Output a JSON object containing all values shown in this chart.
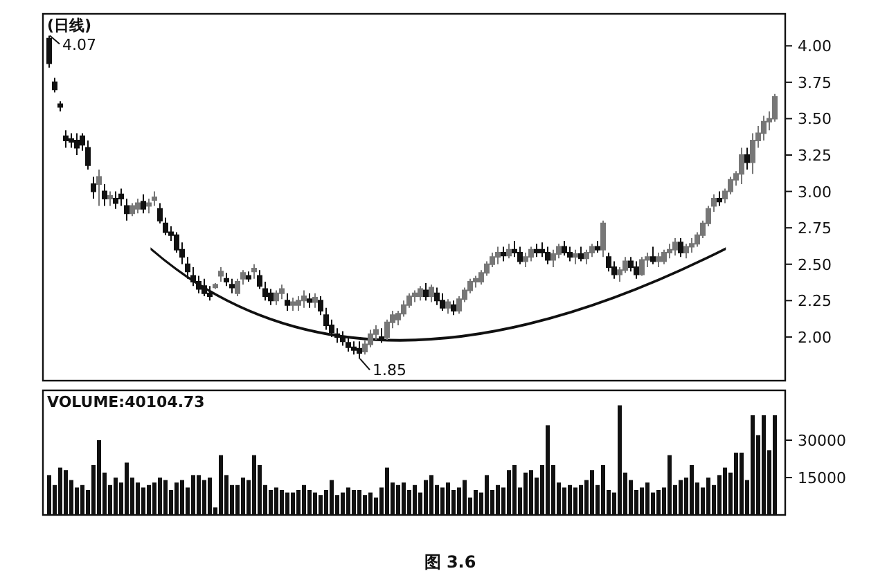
{
  "chart_data": [
    {
      "type": "candlestick",
      "title": "(日线)",
      "categories": [
        null,
        null,
        null,
        null,
        null,
        null,
        null,
        null,
        null,
        null,
        null,
        null,
        null,
        null,
        null,
        null,
        null,
        null,
        null,
        null,
        null,
        null,
        null,
        null,
        null,
        null,
        null,
        null,
        null,
        null,
        null,
        null,
        null,
        null,
        null,
        null,
        null,
        null,
        null,
        null,
        null,
        null,
        null,
        null,
        null,
        null,
        null,
        null,
        null,
        null,
        null,
        null,
        null,
        null,
        null,
        null,
        null,
        null,
        null,
        null,
        null,
        null,
        null,
        null,
        null,
        null,
        null,
        null,
        null,
        null,
        null,
        null,
        null,
        null,
        null,
        null,
        null,
        null,
        null,
        null,
        null,
        null,
        null,
        null,
        null,
        null,
        null,
        null,
        null,
        null,
        null,
        null,
        null,
        null,
        null,
        null,
        null,
        null,
        null,
        null,
        null,
        null,
        null,
        null,
        null,
        null,
        null,
        null,
        null,
        null,
        null,
        null,
        null,
        null,
        null,
        null,
        null,
        null,
        null,
        null,
        null,
        null,
        null,
        null,
        null,
        null,
        null,
        null,
        null,
        null,
        null,
        null
      ],
      "ohlc": [
        [
          4.05,
          4.07,
          3.85,
          3.88
        ],
        [
          3.75,
          3.78,
          3.68,
          3.7
        ],
        [
          3.6,
          3.62,
          3.55,
          3.58
        ],
        [
          3.38,
          3.42,
          3.3,
          3.35
        ],
        [
          3.36,
          3.4,
          3.3,
          3.34
        ],
        [
          3.35,
          3.4,
          3.25,
          3.3
        ],
        [
          3.38,
          3.4,
          3.28,
          3.32
        ],
        [
          3.3,
          3.35,
          3.15,
          3.18
        ],
        [
          3.05,
          3.1,
          2.95,
          3.0
        ],
        [
          3.05,
          3.15,
          2.9,
          3.1
        ],
        [
          3.0,
          3.05,
          2.9,
          2.95
        ],
        [
          2.95,
          3.0,
          2.9,
          2.97
        ],
        [
          2.95,
          3.0,
          2.88,
          2.92
        ],
        [
          2.98,
          3.02,
          2.9,
          2.95
        ],
        [
          2.9,
          2.95,
          2.8,
          2.85
        ],
        [
          2.85,
          2.92,
          2.83,
          2.9
        ],
        [
          2.88,
          2.95,
          2.85,
          2.92
        ],
        [
          2.93,
          2.98,
          2.85,
          2.88
        ],
        [
          2.9,
          2.95,
          2.85,
          2.92
        ],
        [
          2.95,
          3.0,
          2.9,
          2.96
        ],
        [
          2.88,
          2.92,
          2.78,
          2.8
        ],
        [
          2.78,
          2.82,
          2.7,
          2.72
        ],
        [
          2.72,
          2.76,
          2.66,
          2.7
        ],
        [
          2.7,
          2.72,
          2.58,
          2.6
        ],
        [
          2.6,
          2.65,
          2.5,
          2.55
        ],
        [
          2.5,
          2.55,
          2.4,
          2.45
        ],
        [
          2.42,
          2.48,
          2.35,
          2.38
        ],
        [
          2.38,
          2.42,
          2.3,
          2.33
        ],
        [
          2.35,
          2.4,
          2.28,
          2.3
        ],
        [
          2.3,
          2.35,
          2.25,
          2.28
        ],
        [
          2.35,
          2.37,
          2.33,
          2.36
        ],
        [
          2.42,
          2.48,
          2.38,
          2.45
        ],
        [
          2.4,
          2.44,
          2.35,
          2.38
        ],
        [
          2.36,
          2.4,
          2.3,
          2.34
        ],
        [
          2.3,
          2.4,
          2.28,
          2.38
        ],
        [
          2.4,
          2.46,
          2.36,
          2.44
        ],
        [
          2.42,
          2.45,
          2.38,
          2.4
        ],
        [
          2.45,
          2.5,
          2.4,
          2.47
        ],
        [
          2.42,
          2.46,
          2.33,
          2.35
        ],
        [
          2.33,
          2.38,
          2.25,
          2.28
        ],
        [
          2.3,
          2.33,
          2.22,
          2.25
        ],
        [
          2.25,
          2.32,
          2.22,
          2.3
        ],
        [
          2.3,
          2.36,
          2.26,
          2.33
        ],
        [
          2.25,
          2.3,
          2.18,
          2.22
        ],
        [
          2.22,
          2.27,
          2.18,
          2.24
        ],
        [
          2.22,
          2.28,
          2.18,
          2.25
        ],
        [
          2.25,
          2.32,
          2.2,
          2.28
        ],
        [
          2.26,
          2.3,
          2.2,
          2.24
        ],
        [
          2.24,
          2.3,
          2.2,
          2.27
        ],
        [
          2.25,
          2.28,
          2.15,
          2.18
        ],
        [
          2.15,
          2.2,
          2.05,
          2.08
        ],
        [
          2.08,
          2.12,
          2.0,
          2.03
        ],
        [
          2.02,
          2.06,
          1.96,
          2.0
        ],
        [
          2.0,
          2.04,
          1.94,
          1.97
        ],
        [
          1.96,
          2.0,
          1.9,
          1.93
        ],
        [
          1.93,
          1.97,
          1.88,
          1.92
        ],
        [
          1.92,
          1.97,
          1.85,
          1.89
        ],
        [
          1.9,
          1.98,
          1.88,
          1.95
        ],
        [
          1.95,
          2.05,
          1.93,
          2.02
        ],
        [
          2.02,
          2.08,
          1.98,
          2.05
        ],
        [
          2.0,
          2.06,
          1.96,
          1.99
        ],
        [
          2.0,
          2.12,
          1.98,
          2.1
        ],
        [
          2.1,
          2.18,
          2.06,
          2.15
        ],
        [
          2.12,
          2.18,
          2.08,
          2.16
        ],
        [
          2.16,
          2.25,
          2.14,
          2.22
        ],
        [
          2.22,
          2.3,
          2.2,
          2.28
        ],
        [
          2.28,
          2.32,
          2.24,
          2.3
        ],
        [
          2.28,
          2.35,
          2.25,
          2.33
        ],
        [
          2.32,
          2.37,
          2.25,
          2.28
        ],
        [
          2.28,
          2.36,
          2.24,
          2.34
        ],
        [
          2.3,
          2.34,
          2.22,
          2.25
        ],
        [
          2.25,
          2.3,
          2.18,
          2.2
        ],
        [
          2.2,
          2.26,
          2.16,
          2.24
        ],
        [
          2.22,
          2.25,
          2.15,
          2.18
        ],
        [
          2.18,
          2.28,
          2.16,
          2.26
        ],
        [
          2.26,
          2.34,
          2.24,
          2.32
        ],
        [
          2.32,
          2.4,
          2.3,
          2.38
        ],
        [
          2.38,
          2.42,
          2.34,
          2.4
        ],
        [
          2.38,
          2.46,
          2.36,
          2.44
        ],
        [
          2.44,
          2.52,
          2.42,
          2.5
        ],
        [
          2.5,
          2.58,
          2.48,
          2.55
        ],
        [
          2.55,
          2.62,
          2.5,
          2.58
        ],
        [
          2.58,
          2.62,
          2.52,
          2.56
        ],
        [
          2.56,
          2.64,
          2.54,
          2.6
        ],
        [
          2.6,
          2.66,
          2.55,
          2.58
        ],
        [
          2.58,
          2.62,
          2.5,
          2.52
        ],
        [
          2.52,
          2.58,
          2.48,
          2.55
        ],
        [
          2.55,
          2.62,
          2.52,
          2.6
        ],
        [
          2.6,
          2.64,
          2.55,
          2.58
        ],
        [
          2.6,
          2.65,
          2.55,
          2.58
        ],
        [
          2.58,
          2.62,
          2.5,
          2.53
        ],
        [
          2.53,
          2.6,
          2.48,
          2.57
        ],
        [
          2.57,
          2.64,
          2.54,
          2.62
        ],
        [
          2.62,
          2.66,
          2.56,
          2.58
        ],
        [
          2.58,
          2.62,
          2.52,
          2.55
        ],
        [
          2.55,
          2.6,
          2.5,
          2.57
        ],
        [
          2.57,
          2.62,
          2.52,
          2.54
        ],
        [
          2.54,
          2.6,
          2.5,
          2.58
        ],
        [
          2.58,
          2.64,
          2.55,
          2.62
        ],
        [
          2.62,
          2.66,
          2.58,
          2.6
        ],
        [
          2.6,
          2.8,
          2.55,
          2.78
        ],
        [
          2.55,
          2.58,
          2.45,
          2.48
        ],
        [
          2.48,
          2.52,
          2.4,
          2.43
        ],
        [
          2.43,
          2.48,
          2.38,
          2.46
        ],
        [
          2.46,
          2.55,
          2.44,
          2.52
        ],
        [
          2.52,
          2.55,
          2.45,
          2.48
        ],
        [
          2.48,
          2.52,
          2.4,
          2.43
        ],
        [
          2.43,
          2.55,
          2.42,
          2.53
        ],
        [
          2.53,
          2.58,
          2.48,
          2.55
        ],
        [
          2.55,
          2.62,
          2.5,
          2.52
        ],
        [
          2.52,
          2.58,
          2.48,
          2.55
        ],
        [
          2.52,
          2.6,
          2.5,
          2.58
        ],
        [
          2.58,
          2.64,
          2.54,
          2.6
        ],
        [
          2.6,
          2.68,
          2.56,
          2.65
        ],
        [
          2.65,
          2.68,
          2.55,
          2.58
        ],
        [
          2.58,
          2.64,
          2.54,
          2.62
        ],
        [
          2.62,
          2.68,
          2.58,
          2.64
        ],
        [
          2.64,
          2.72,
          2.62,
          2.7
        ],
        [
          2.7,
          2.8,
          2.68,
          2.78
        ],
        [
          2.78,
          2.9,
          2.76,
          2.88
        ],
        [
          2.9,
          2.98,
          2.86,
          2.95
        ],
        [
          2.95,
          3.0,
          2.9,
          2.93
        ],
        [
          2.95,
          3.02,
          2.92,
          3.0
        ],
        [
          3.0,
          3.1,
          2.98,
          3.08
        ],
        [
          3.08,
          3.14,
          3.04,
          3.12
        ],
        [
          3.12,
          3.3,
          3.05,
          3.25
        ],
        [
          3.25,
          3.3,
          3.15,
          3.2
        ],
        [
          3.2,
          3.4,
          3.12,
          3.35
        ],
        [
          3.35,
          3.45,
          3.3,
          3.4
        ],
        [
          3.4,
          3.52,
          3.35,
          3.48
        ],
        [
          3.48,
          3.55,
          3.42,
          3.5
        ],
        [
          3.5,
          3.67,
          3.48,
          3.65
        ]
      ],
      "ylim": [
        1.7,
        4.22
      ],
      "yticks": [
        {
          "value": 2,
          "label": "2.00"
        },
        {
          "value": 2.25,
          "label": "2.25"
        },
        {
          "value": 2.5,
          "label": "2.50"
        },
        {
          "value": 2.75,
          "label": "2.75"
        },
        {
          "value": 3,
          "label": "3.00"
        },
        {
          "value": 3.25,
          "label": "3.25"
        },
        {
          "value": 3.5,
          "label": "3.50"
        },
        {
          "value": 3.75,
          "label": "3.75"
        },
        {
          "value": 4,
          "label": "4.00"
        }
      ],
      "tick_labels": "y",
      "annotations": [
        "4.07",
        "1.85"
      ]
    },
    {
      "type": "bar",
      "title": "VOLUME:40104.73",
      "color": "#111111",
      "categories": [
        null,
        null,
        null,
        null,
        null,
        null,
        null,
        null,
        null,
        null,
        null,
        null,
        null,
        null,
        null,
        null,
        null,
        null,
        null,
        null,
        null,
        null,
        null,
        null,
        null,
        null,
        null,
        null,
        null,
        null,
        null,
        null,
        null,
        null,
        null,
        null,
        null,
        null,
        null,
        null,
        null,
        null,
        null,
        null,
        null,
        null,
        null,
        null,
        null,
        null,
        null,
        null,
        null,
        null,
        null,
        null,
        null,
        null,
        null,
        null,
        null,
        null,
        null,
        null,
        null,
        null,
        null,
        null,
        null,
        null,
        null,
        null,
        null,
        null,
        null,
        null,
        null,
        null,
        null,
        null,
        null,
        null,
        null,
        null,
        null,
        null,
        null,
        null,
        null,
        null,
        null,
        null,
        null,
        null,
        null,
        null,
        null,
        null,
        null,
        null,
        null,
        null,
        null,
        null,
        null,
        null,
        null,
        null,
        null,
        null,
        null,
        null,
        null,
        null,
        null,
        null,
        null,
        null,
        null,
        null,
        null,
        null,
        null,
        null,
        null,
        null,
        null,
        null,
        null,
        null,
        null,
        null
      ],
      "values": [
        16000,
        12000,
        19000,
        18000,
        14000,
        11000,
        12000,
        10000,
        20000,
        30000,
        17000,
        12000,
        15000,
        13000,
        21000,
        15000,
        13000,
        11000,
        12000,
        13000,
        15000,
        14000,
        10000,
        13000,
        14000,
        11000,
        16000,
        16000,
        14000,
        15000,
        3000,
        24000,
        16000,
        12000,
        12000,
        15000,
        14000,
        24000,
        20000,
        12000,
        10000,
        11000,
        10000,
        9000,
        9000,
        10000,
        12000,
        10000,
        9000,
        8000,
        10000,
        14000,
        8000,
        9000,
        11000,
        10000,
        10000,
        8000,
        9000,
        7000,
        11000,
        19000,
        13000,
        12000,
        13000,
        10000,
        12000,
        9000,
        14000,
        16000,
        12000,
        11000,
        13000,
        10000,
        11000,
        14000,
        7000,
        10000,
        9000,
        16000,
        10000,
        12000,
        11000,
        18000,
        20000,
        11000,
        17000,
        18000,
        15000,
        20000,
        36000,
        20000,
        13000,
        11000,
        12000,
        11000,
        12000,
        14000,
        18000,
        12000,
        20000,
        10000,
        9000,
        44000,
        17000,
        14000,
        10000,
        11000,
        13000,
        9000,
        10000,
        11000,
        24000,
        12000,
        14000,
        15000,
        20000,
        13000,
        11000,
        15000,
        12000,
        16000,
        19000,
        17000,
        25000,
        25000,
        14000,
        40000,
        32000,
        40000,
        26000,
        40000
      ],
      "ylim": [
        0,
        50000
      ],
      "yticks": [
        15000,
        30000
      ],
      "tick_labels": "y",
      "annotations": [
        "图 3.6"
      ]
    }
  ]
}
